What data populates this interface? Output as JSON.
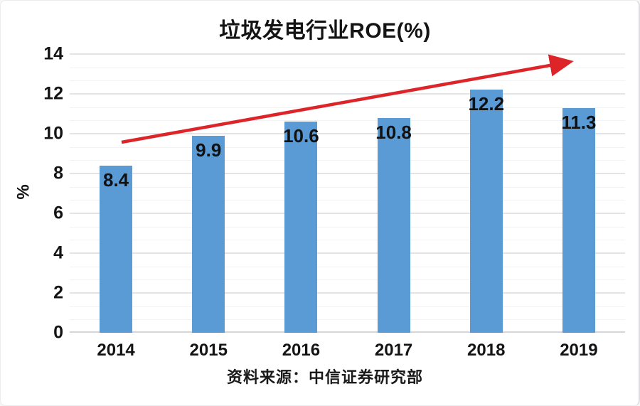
{
  "title": "垃圾发电行业ROE(%)",
  "source_note": "资料来源：中信证券研究部",
  "colors": {
    "bar": "#5b9bd5",
    "arrow": "#dd2428",
    "grid_major": "#e4e4e8",
    "grid_minor": "#f2f2f5",
    "axis_line": "#d6d6da",
    "text": "#141414"
  },
  "chart_data": {
    "type": "bar",
    "title": "垃圾发电行业ROE(%)",
    "categories": [
      "2014",
      "2015",
      "2016",
      "2017",
      "2018",
      "2019"
    ],
    "values": [
      8.4,
      9.9,
      10.6,
      10.8,
      12.2,
      11.3
    ],
    "data_labels": [
      "8.4",
      "9.9",
      "10.6",
      "10.8",
      "12.2",
      "11.3"
    ],
    "xlabel": "",
    "ylabel": "%",
    "ylim": [
      0,
      14
    ],
    "yticks": [
      0,
      2,
      4,
      6,
      8,
      10,
      12,
      14
    ],
    "grid": true,
    "legend": false,
    "annotation": {
      "type": "trend-arrow",
      "color": "#dd2428",
      "from_xy": [
        170,
        199
      ],
      "to_xy": [
        800,
        86
      ]
    }
  }
}
